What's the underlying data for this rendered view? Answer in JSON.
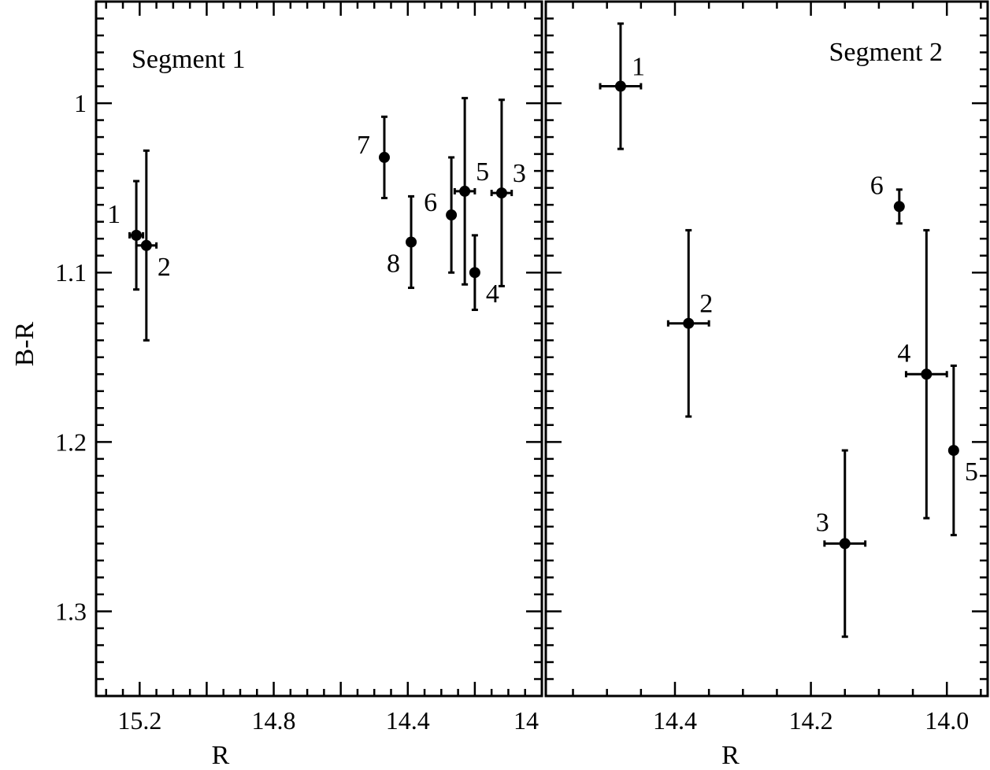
{
  "figure": {
    "ylabel": "B-R",
    "colors": {
      "ink": "#000000",
      "background": "#ffffff"
    }
  },
  "chart_data": [
    {
      "type": "scatter",
      "title": "Segment 1",
      "xlabel": "R",
      "ylabel": "B-R",
      "xlim": [
        15.33,
        14.0
      ],
      "ylim": [
        1.35,
        0.94
      ],
      "x_inverted": true,
      "y_inverted": true,
      "grid": false,
      "xticks": [
        15.2,
        14.8,
        14.4,
        14
      ],
      "xtick_labels": [
        "15.2",
        "14.8",
        "14.4",
        "14"
      ],
      "yticks": [
        1.0,
        1.1,
        1.2,
        1.3
      ],
      "ytick_labels": [
        "1",
        "1.1",
        "1.2",
        "1.3"
      ],
      "points": [
        {
          "label": "1",
          "x": 15.21,
          "y": 1.078,
          "xerr": 0.02,
          "yerr": 0.032,
          "label_pos": "upper-left"
        },
        {
          "label": "2",
          "x": 15.18,
          "y": 1.084,
          "xerr": 0.03,
          "yerr": 0.056,
          "label_pos": "lower-right"
        },
        {
          "label": "3",
          "x": 14.12,
          "y": 1.053,
          "xerr": 0.03,
          "yerr": 0.055,
          "label_pos": "upper-right"
        },
        {
          "label": "4",
          "x": 14.2,
          "y": 1.1,
          "xerr": 0.0,
          "yerr": 0.022,
          "label_pos": "lower-right"
        },
        {
          "label": "5",
          "x": 14.23,
          "y": 1.052,
          "xerr": 0.03,
          "yerr": 0.055,
          "label_pos": "upper-right"
        },
        {
          "label": "6",
          "x": 14.27,
          "y": 1.066,
          "xerr": 0.0,
          "yerr": 0.034,
          "label_pos": "left"
        },
        {
          "label": "7",
          "x": 14.47,
          "y": 1.032,
          "xerr": 0.0,
          "yerr": 0.024,
          "label_pos": "left"
        },
        {
          "label": "8",
          "x": 14.39,
          "y": 1.082,
          "xerr": 0.0,
          "yerr": 0.027,
          "label_pos": "lower-left"
        }
      ]
    },
    {
      "type": "scatter",
      "title": "Segment 2",
      "xlabel": "R",
      "ylabel": "",
      "xlim": [
        14.59,
        13.94
      ],
      "ylim": [
        1.35,
        0.94
      ],
      "x_inverted": true,
      "y_inverted": true,
      "grid": false,
      "xticks": [
        14.4,
        14.2,
        14.0
      ],
      "xtick_labels": [
        "14.4",
        "14.2",
        "14.0"
      ],
      "yticks": [
        1.0,
        1.1,
        1.2,
        1.3
      ],
      "ytick_labels": [
        "",
        "",
        "",
        ""
      ],
      "points": [
        {
          "label": "1",
          "x": 14.48,
          "y": 0.99,
          "xerr": 0.03,
          "yerr": 0.037,
          "label_pos": "upper-right"
        },
        {
          "label": "2",
          "x": 14.38,
          "y": 1.13,
          "xerr": 0.03,
          "yerr": 0.055,
          "label_pos": "upper-right"
        },
        {
          "label": "3",
          "x": 14.15,
          "y": 1.26,
          "xerr": 0.03,
          "yerr": 0.055,
          "label_pos": "upper-left"
        },
        {
          "label": "4",
          "x": 14.03,
          "y": 1.16,
          "xerr": 0.03,
          "yerr": 0.085,
          "label_pos": "upper-left"
        },
        {
          "label": "5",
          "x": 13.99,
          "y": 1.205,
          "xerr": 0.0,
          "yerr": 0.05,
          "label_pos": "lower-right"
        },
        {
          "label": "6",
          "x": 14.07,
          "y": 1.061,
          "xerr": 0.0,
          "yerr": 0.01,
          "label_pos": "upper-left"
        }
      ]
    }
  ]
}
